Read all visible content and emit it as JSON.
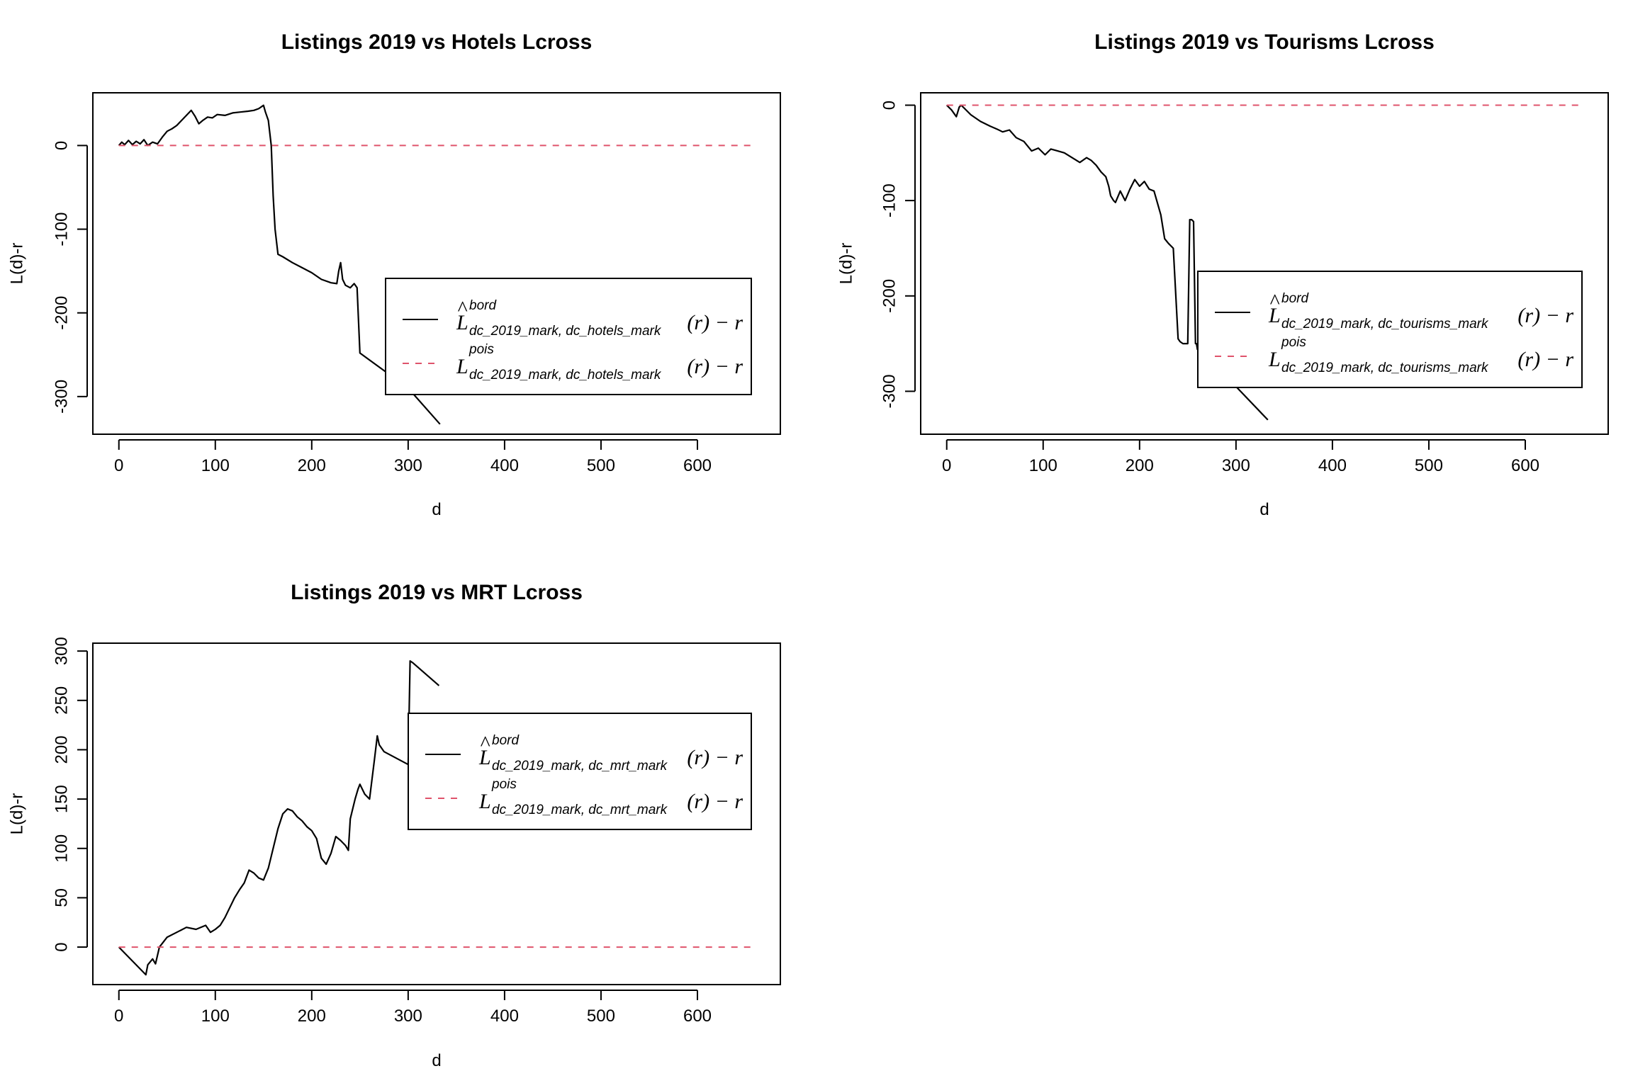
{
  "chart_data": [
    {
      "type": "line",
      "title": "Listings 2019 vs Hotels Lcross",
      "xlabel": "d",
      "ylabel": "L(d)-r",
      "xlim": [
        -27,
        686
      ],
      "ylim": [
        -345,
        63
      ],
      "xticks": [
        "0",
        "100",
        "200",
        "300",
        "400",
        "500",
        "600"
      ],
      "yticks": [
        "0",
        "-100",
        "-200",
        "-300"
      ],
      "legend_position": "right",
      "legend": [
        {
          "sup": "bord",
          "sub": "dc_2019_mark, dc_hotels_mark",
          "tail": "(r) − r",
          "hat": true,
          "color": "#000000",
          "dash": "solid"
        },
        {
          "sup": "pois",
          "sub": "dc_2019_mark, dc_hotels_mark",
          "tail": "(r) − r",
          "hat": false,
          "color": "#DF536B",
          "dash": "dashed"
        }
      ],
      "series": [
        {
          "color": "#000000",
          "style": "solid",
          "x": [
            0,
            3,
            6,
            10,
            14,
            18,
            22,
            26,
            30,
            35,
            40,
            45,
            50,
            55,
            60,
            65,
            70,
            75,
            79,
            83,
            87,
            92,
            97,
            102,
            110,
            118,
            126,
            134,
            140,
            145,
            150,
            152,
            155,
            158,
            160,
            162,
            165,
            170,
            180,
            190,
            200,
            210,
            220,
            226,
            228,
            230,
            232,
            235,
            240,
            244,
            247,
            250,
            300,
            333
          ],
          "y": [
            0,
            4,
            1,
            6,
            1,
            5,
            2,
            7,
            0,
            4,
            2,
            10,
            17,
            20,
            24,
            30,
            36,
            42,
            35,
            26,
            30,
            34,
            33,
            37,
            36,
            39,
            40,
            41,
            42,
            44,
            48,
            40,
            30,
            0,
            -60,
            -100,
            -130,
            -133,
            -140,
            -146,
            -152,
            -160,
            -164,
            -165,
            -150,
            -140,
            -160,
            -167,
            -170,
            -165,
            -170,
            -248,
            -290,
            -333
          ]
        },
        {
          "color": "#DF536B",
          "style": "dashed",
          "x": [
            0,
            660
          ],
          "y": [
            0,
            0
          ]
        }
      ]
    },
    {
      "type": "line",
      "title": "Listings 2019 vs Tourisms Lcross",
      "xlabel": "d",
      "ylabel": "L(d)-r",
      "xlim": [
        -27,
        686
      ],
      "ylim": [
        -345,
        13
      ],
      "xticks": [
        "0",
        "100",
        "200",
        "300",
        "400",
        "500",
        "600"
      ],
      "yticks": [
        "0",
        "-100",
        "-200",
        "-300"
      ],
      "legend_position": "right",
      "legend": [
        {
          "sup": "bord",
          "sub": "dc_2019_mark, dc_tourisms_mark",
          "tail": "(r) − r",
          "hat": true,
          "color": "#000000",
          "dash": "solid"
        },
        {
          "sup": "pois",
          "sub": "dc_2019_mark, dc_tourisms_mark",
          "tail": "(r) − r",
          "hat": false,
          "color": "#DF536B",
          "dash": "dashed"
        }
      ],
      "series": [
        {
          "color": "#000000",
          "style": "solid",
          "x": [
            0,
            5,
            10,
            13,
            15,
            18,
            25,
            35,
            45,
            52,
            58,
            65,
            72,
            80,
            88,
            95,
            102,
            108,
            115,
            122,
            130,
            138,
            145,
            150,
            155,
            160,
            165,
            168,
            170,
            173,
            175,
            180,
            185,
            190,
            195,
            200,
            205,
            210,
            215,
            222,
            226,
            230,
            235,
            240,
            242,
            245,
            250,
            252,
            254,
            256,
            258,
            259,
            260,
            300,
            333
          ],
          "y": [
            0,
            -5,
            -12,
            -2,
            0,
            -3,
            -10,
            -17,
            -22,
            -25,
            -28,
            -26,
            -34,
            -38,
            -48,
            -45,
            -52,
            -46,
            -48,
            -50,
            -55,
            -60,
            -55,
            -58,
            -63,
            -70,
            -75,
            -85,
            -95,
            -100,
            -102,
            -90,
            -100,
            -88,
            -78,
            -85,
            -80,
            -88,
            -90,
            -115,
            -140,
            -145,
            -150,
            -245,
            -248,
            -250,
            -250,
            -120,
            -120,
            -122,
            -250,
            -250,
            -256,
            -295,
            -330
          ]
        },
        {
          "color": "#DF536B",
          "style": "dashed",
          "x": [
            0,
            660
          ],
          "y": [
            0,
            0
          ]
        }
      ]
    },
    {
      "type": "line",
      "title": "Listings 2019 vs MRT Lcross",
      "xlabel": "d",
      "ylabel": "L(d)-r",
      "xlim": [
        -27,
        686
      ],
      "ylim": [
        -38,
        308
      ],
      "xticks": [
        "0",
        "100",
        "200",
        "300",
        "400",
        "500",
        "600"
      ],
      "yticks": [
        "0",
        "50",
        "100",
        "150",
        "200",
        "250",
        "300"
      ],
      "legend_position": "right",
      "legend": [
        {
          "sup": "bord",
          "sub": "dc_2019_mark, dc_mrt_mark",
          "tail": "(r) − r",
          "hat": true,
          "color": "#000000",
          "dash": "solid"
        },
        {
          "sup": "pois",
          "sub": "dc_2019_mark, dc_mrt_mark",
          "tail": "(r) − r",
          "hat": false,
          "color": "#DF536B",
          "dash": "dashed"
        }
      ],
      "series": [
        {
          "color": "#000000",
          "style": "solid",
          "x": [
            0,
            28,
            30,
            35,
            38,
            42,
            50,
            60,
            70,
            80,
            90,
            95,
            100,
            105,
            110,
            115,
            120,
            125,
            130,
            135,
            140,
            145,
            150,
            155,
            160,
            165,
            170,
            175,
            180,
            185,
            190,
            195,
            200,
            205,
            210,
            215,
            220,
            225,
            230,
            235,
            238,
            240,
            245,
            248,
            250,
            255,
            260,
            265,
            268,
            270,
            275,
            300,
            302,
            305,
            332
          ],
          "y": [
            0,
            -28,
            -18,
            -12,
            -17,
            0,
            10,
            15,
            20,
            18,
            22,
            15,
            18,
            22,
            30,
            40,
            50,
            58,
            65,
            78,
            75,
            70,
            68,
            80,
            100,
            120,
            135,
            140,
            138,
            132,
            128,
            122,
            118,
            110,
            90,
            84,
            95,
            112,
            108,
            103,
            98,
            130,
            150,
            160,
            165,
            155,
            150,
            190,
            214,
            205,
            198,
            185,
            290,
            288,
            265
          ]
        },
        {
          "color": "#DF536B",
          "style": "dashed",
          "x": [
            0,
            660
          ],
          "y": [
            0,
            0
          ]
        }
      ]
    }
  ]
}
